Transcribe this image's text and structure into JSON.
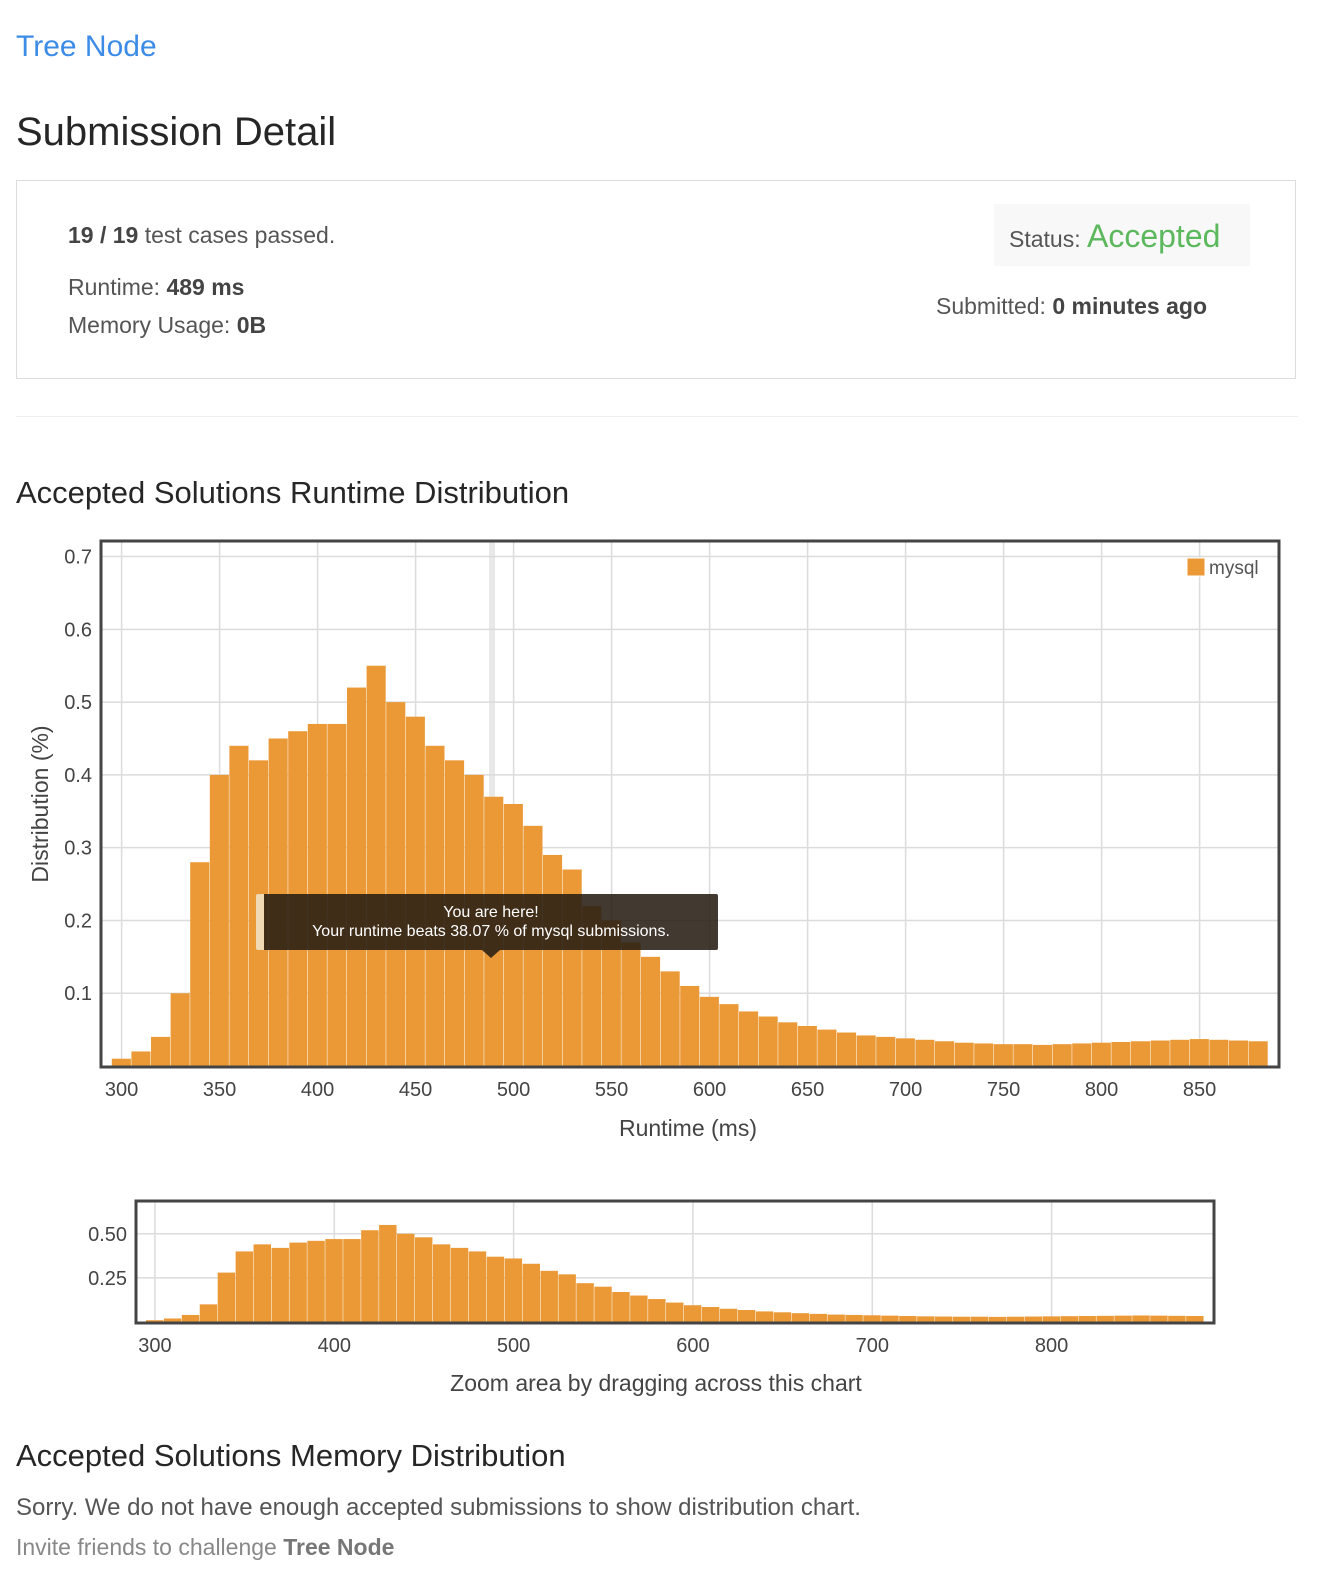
{
  "problem": {
    "title": "Tree Node"
  },
  "page": {
    "title": "Submission Detail"
  },
  "result": {
    "passed": "19",
    "total": "19",
    "passed_sep": " / ",
    "passed_suffix": " test cases passed.",
    "runtime_label": "Runtime: ",
    "runtime_value": "489 ms",
    "memory_label": "Memory Usage: ",
    "memory_value": "0B",
    "status_label": "Status: ",
    "status_value": "Accepted",
    "submitted_label": "Submitted: ",
    "submitted_value": "0 minutes ago"
  },
  "runtime_section": {
    "title": "Accepted Solutions Runtime Distribution",
    "tooltip_line1": "You are here!",
    "tooltip_line2": "Your runtime beats 38.07 % of mysql submissions.",
    "zoom_hint": "Zoom area by dragging across this chart"
  },
  "memory_section": {
    "title": "Accepted Solutions Memory Distribution",
    "message": "Sorry. We do not have enough accepted submissions to show distribution chart."
  },
  "invite": {
    "prefix": "Invite friends to challenge ",
    "problem": "Tree Node"
  },
  "colors": {
    "bar": "#eb9936",
    "accepted": "#5cb85c",
    "link": "#3c8ce7"
  },
  "chart_data": [
    {
      "type": "bar",
      "title": "",
      "xlabel": "Runtime (ms)",
      "ylabel": "Distribution (%)",
      "xlim": [
        290,
        890
      ],
      "ylim": [
        0,
        0.72
      ],
      "xticks": [
        300,
        350,
        400,
        450,
        500,
        550,
        600,
        650,
        700,
        750,
        800,
        850
      ],
      "yticks": [
        0.1,
        0.2,
        0.3,
        0.4,
        0.5,
        0.6,
        0.7
      ],
      "grid": true,
      "legend": "top-right",
      "highlight_x": 489,
      "series": [
        {
          "name": "mysql",
          "x": [
            300,
            310,
            320,
            330,
            340,
            350,
            360,
            370,
            380,
            390,
            400,
            410,
            420,
            430,
            440,
            450,
            460,
            470,
            480,
            490,
            500,
            510,
            520,
            530,
            540,
            550,
            560,
            570,
            580,
            590,
            600,
            610,
            620,
            630,
            640,
            650,
            660,
            670,
            680,
            690,
            700,
            710,
            720,
            730,
            740,
            750,
            760,
            770,
            780,
            790,
            800,
            810,
            820,
            830,
            840,
            850,
            860,
            870,
            880
          ],
          "values": [
            0.01,
            0.02,
            0.04,
            0.1,
            0.28,
            0.4,
            0.44,
            0.42,
            0.45,
            0.46,
            0.47,
            0.47,
            0.52,
            0.55,
            0.5,
            0.48,
            0.44,
            0.42,
            0.4,
            0.37,
            0.36,
            0.33,
            0.29,
            0.27,
            0.22,
            0.2,
            0.17,
            0.15,
            0.13,
            0.11,
            0.095,
            0.085,
            0.075,
            0.068,
            0.06,
            0.055,
            0.05,
            0.046,
            0.042,
            0.04,
            0.038,
            0.036,
            0.034,
            0.032,
            0.031,
            0.03,
            0.03,
            0.029,
            0.03,
            0.031,
            0.032,
            0.033,
            0.034,
            0.035,
            0.036,
            0.037,
            0.036,
            0.035,
            0.034
          ]
        }
      ]
    },
    {
      "type": "bar",
      "title": "",
      "xlabel": "",
      "ylabel": "",
      "xlim": [
        290,
        890
      ],
      "ylim": [
        0,
        0.68
      ],
      "xticks": [
        300,
        400,
        500,
        600,
        700,
        800
      ],
      "yticks": [
        0.25,
        0.5
      ],
      "ytick_labels": [
        "0.25",
        "0.50"
      ],
      "grid": true,
      "series": [
        {
          "name": "mysql",
          "x": [
            300,
            310,
            320,
            330,
            340,
            350,
            360,
            370,
            380,
            390,
            400,
            410,
            420,
            430,
            440,
            450,
            460,
            470,
            480,
            490,
            500,
            510,
            520,
            530,
            540,
            550,
            560,
            570,
            580,
            590,
            600,
            610,
            620,
            630,
            640,
            650,
            660,
            670,
            680,
            690,
            700,
            710,
            720,
            730,
            740,
            750,
            760,
            770,
            780,
            790,
            800,
            810,
            820,
            830,
            840,
            850,
            860,
            870,
            880
          ],
          "values": [
            0.01,
            0.02,
            0.04,
            0.1,
            0.28,
            0.4,
            0.44,
            0.42,
            0.45,
            0.46,
            0.47,
            0.47,
            0.52,
            0.55,
            0.5,
            0.48,
            0.44,
            0.42,
            0.4,
            0.37,
            0.36,
            0.33,
            0.29,
            0.27,
            0.22,
            0.2,
            0.17,
            0.15,
            0.13,
            0.11,
            0.095,
            0.085,
            0.075,
            0.068,
            0.06,
            0.055,
            0.05,
            0.046,
            0.042,
            0.04,
            0.038,
            0.036,
            0.034,
            0.032,
            0.031,
            0.03,
            0.03,
            0.029,
            0.03,
            0.031,
            0.032,
            0.033,
            0.034,
            0.035,
            0.036,
            0.037,
            0.036,
            0.035,
            0.034
          ]
        }
      ]
    }
  ]
}
